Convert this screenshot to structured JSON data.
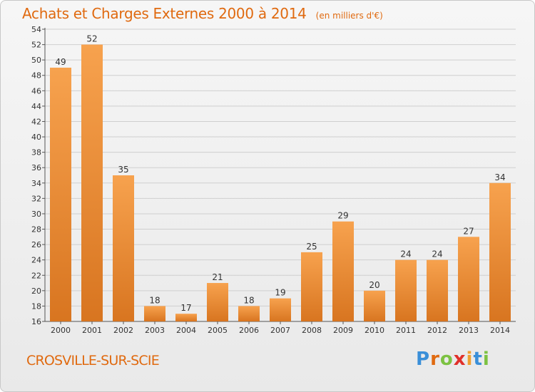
{
  "header": {
    "title": "Achats et Charges Externes 2000 à 2014",
    "subtitle": "(en milliers d'€)"
  },
  "footer": {
    "place": "CROSVILLE-SUR-SCIE",
    "brand": "Proxiti"
  },
  "colors": {
    "accent": "#e06a10",
    "bar_light": "#f7a24e",
    "bar_dark": "#d87520",
    "brand_letters": [
      "#3a8fd8",
      "#e06a10",
      "#7cc242",
      "#e0302a",
      "#f0a030",
      "#3a8fd8",
      "#7cc242"
    ]
  },
  "chart_data": {
    "type": "bar",
    "categories": [
      "2000",
      "2001",
      "2002",
      "2003",
      "2004",
      "2005",
      "2006",
      "2007",
      "2008",
      "2009",
      "2010",
      "2011",
      "2012",
      "2013",
      "2014"
    ],
    "values": [
      49,
      52,
      35,
      18,
      17,
      21,
      18,
      19,
      25,
      29,
      20,
      24,
      24,
      27,
      34
    ],
    "title": "Achats et Charges Externes 2000 à 2014",
    "subtitle": "(en milliers d'€)",
    "xlabel": "",
    "ylabel": "",
    "ylim": [
      16,
      54
    ],
    "yticks": [
      16,
      18,
      20,
      22,
      24,
      26,
      28,
      30,
      32,
      34,
      36,
      38,
      40,
      42,
      44,
      46,
      48,
      50,
      52,
      54
    ],
    "grid": true,
    "legend": "none"
  }
}
